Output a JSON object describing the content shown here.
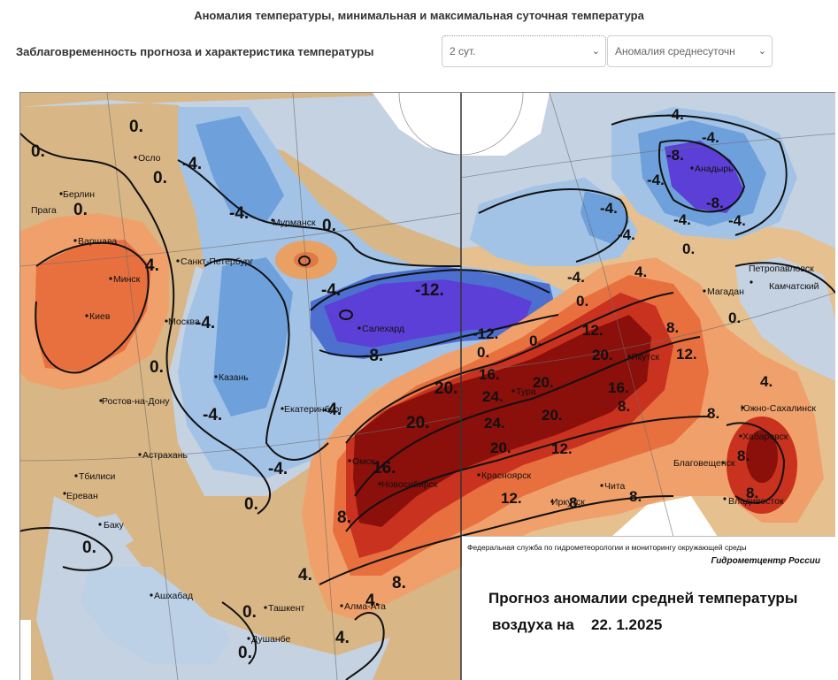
{
  "page": {
    "title": "Аномалия температуры, минимальная и максимальная суточная температура"
  },
  "controls": {
    "label": "Заблаговременность прогноза и характеристика температуры",
    "lead_select": {
      "value": "2 сут."
    },
    "characteristic_select": {
      "value": "Аномалия среднесуточн"
    }
  },
  "map": {
    "cities": {
      "oslo": "Осло",
      "berlin": "Берлин",
      "praga": "Прага",
      "varshava": "Варшава",
      "minsk": "Минск",
      "kiev": "Киев",
      "spb": "Санкт-Петербург",
      "moskva": "Москва",
      "murmansk": "Мурманск",
      "kazan": "Казань",
      "rostov": "Ростов-на-Дону",
      "astrakhan": "Астрахань",
      "tbilisi": "Тбилиси",
      "erevan": "Ереван",
      "baku": "Баку",
      "ashkhabad": "Ашхабад",
      "tashkent": "Ташкент",
      "dushanbe": "Душанбе",
      "almaty": "Алма-Ата",
      "novosibirsk": "Новосибирск",
      "omsk": "Омск",
      "ekaterinburg": "Екатеринбург",
      "salekhard": "Салехард",
      "krasnoyarsk": "Красноярск",
      "irkutsk": "Иркутск",
      "chita": "Чита",
      "yakutsk": "Якутск",
      "magadan": "Магадан",
      "anadyr": "Анадырь",
      "petropavlovsk_1": "Петропавловск",
      "petropavlovsk_2": "Камчатский",
      "yuzhno": "Южно-Сахалинск",
      "khabarovsk": "Хабаровск",
      "blagoveshchensk": "Благовещенск",
      "vladivostok": "Владивосток",
      "tura": "Тура"
    },
    "isolines": {
      "zero": "0.",
      "plus4": "4.",
      "plus8": "8.",
      "plus12": "12.",
      "plus16": "16.",
      "plus20": "20.",
      "plus24": "24.",
      "minus4": "-4.",
      "minus8": "-8.",
      "minus12": "-12."
    },
    "colors": {
      "deep_red": "#8b0f0a",
      "red": "#c8321e",
      "orange_red": "#e8703f",
      "salmon": "#f0a06a",
      "light_orange": "#f3c597",
      "tan": "#d9b685",
      "near_zero": "#c5d2e2",
      "light_blue": "#a3c3e6",
      "blue": "#6ea0dc",
      "deep_blue": "#4d6fd0",
      "violet": "#5c3fd6"
    }
  },
  "caption": {
    "agency": "Федеральная служба по гидрометеорологии и мониторингу окружающей среды",
    "center": "Гидрометцентр России",
    "title": "Прогноз аномалии средней температуры",
    "date_label": "воздуха на",
    "date": "22. 1.2025"
  }
}
